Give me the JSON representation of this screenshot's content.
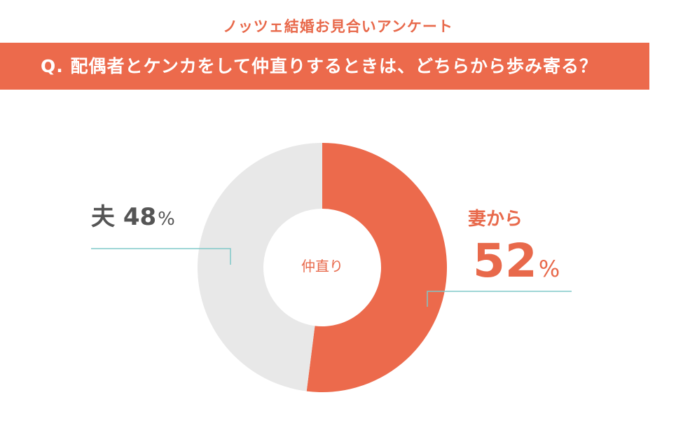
{
  "survey_title": "ノッツェ結婚お見合いアンケート",
  "question": "Q. 配偶者とケンカをして仲直りするときは、どちらから歩み寄る？",
  "center_label": "仲直り",
  "percent_sign": "%",
  "chart_data": {
    "type": "pie",
    "donut": true,
    "title": "",
    "categories": [
      "妻から",
      "夫"
    ],
    "values": [
      52,
      48
    ],
    "unit": "%",
    "colors": [
      "#ec6a4c",
      "#e8e8e8"
    ],
    "legend": "none"
  },
  "labels": {
    "husband": {
      "name": "夫",
      "value": "48"
    },
    "wife": {
      "name": "妻から",
      "value": "52"
    }
  },
  "leader_line_color": "#7fc8c8"
}
